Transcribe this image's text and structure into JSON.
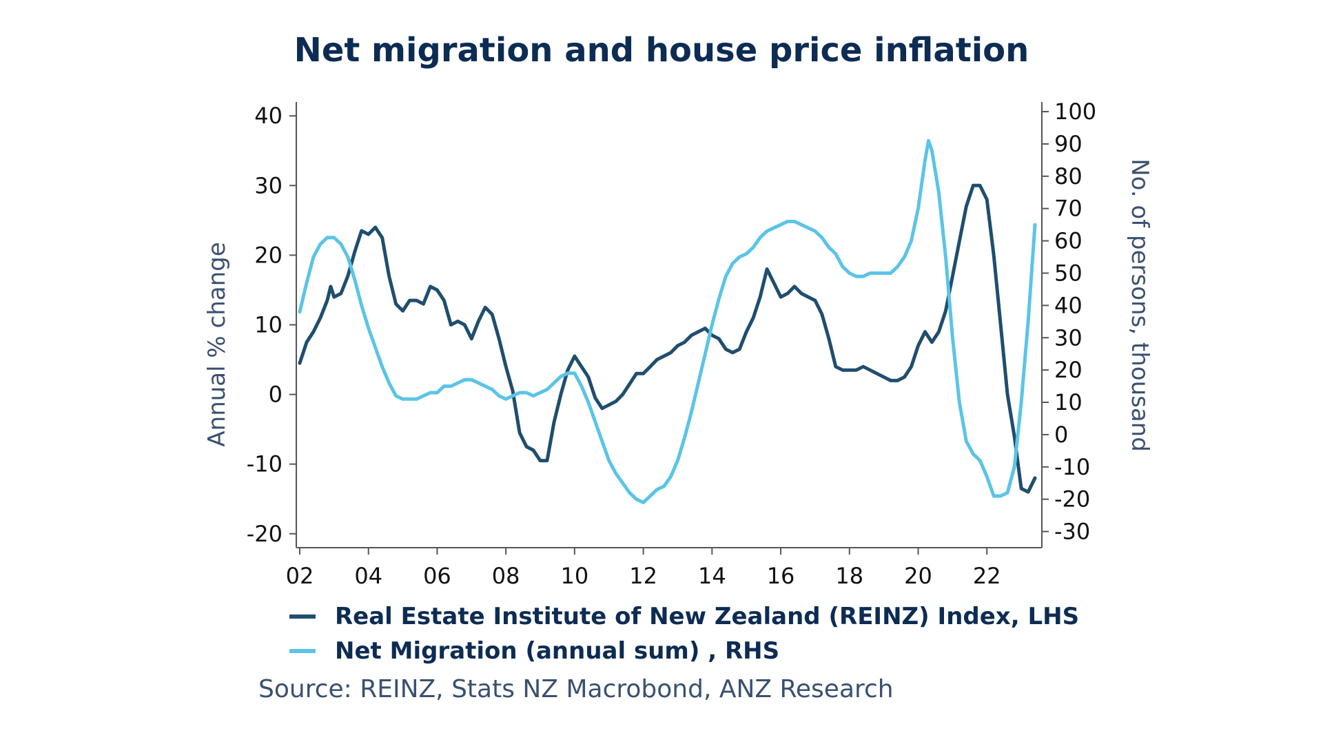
{
  "chart_data": {
    "type": "line",
    "title": "Net migration and house price inflation",
    "ylabel_left": "Annual % change",
    "ylabel_right": "No. of persons, thousand",
    "x_ticks": [
      "02",
      "04",
      "06",
      "08",
      "10",
      "12",
      "14",
      "16",
      "18",
      "20",
      "22"
    ],
    "ylim_left": [
      -22,
      42
    ],
    "ylim_right": [
      -35,
      103
    ],
    "yticks_left": [
      "40",
      "30",
      "20",
      "10",
      "0",
      "-10",
      "-20"
    ],
    "yticks_right": [
      "100",
      "90",
      "80",
      "70",
      "60",
      "50",
      "40",
      "30",
      "20",
      "10",
      "0",
      "-10",
      "-20",
      "-30"
    ],
    "grid": false,
    "legend_position": "bottom",
    "series": [
      {
        "name": "Real Estate Institute of New Zealand (REINZ) Index, LHS",
        "axis": "left",
        "color": "#1f4e6e",
        "points": [
          [
            2002.0,
            4.5
          ],
          [
            2002.2,
            7.5
          ],
          [
            2002.4,
            9.0
          ],
          [
            2002.6,
            11.0
          ],
          [
            2002.8,
            13.5
          ],
          [
            2002.9,
            15.5
          ],
          [
            2003.0,
            14.0
          ],
          [
            2003.2,
            14.5
          ],
          [
            2003.4,
            17.0
          ],
          [
            2003.6,
            20.5
          ],
          [
            2003.8,
            23.5
          ],
          [
            2004.0,
            23.0
          ],
          [
            2004.2,
            24.0
          ],
          [
            2004.4,
            22.5
          ],
          [
            2004.6,
            17.0
          ],
          [
            2004.8,
            13.0
          ],
          [
            2005.0,
            12.0
          ],
          [
            2005.2,
            13.5
          ],
          [
            2005.4,
            13.5
          ],
          [
            2005.6,
            13.0
          ],
          [
            2005.8,
            15.5
          ],
          [
            2006.0,
            15.0
          ],
          [
            2006.2,
            13.5
          ],
          [
            2006.4,
            10.0
          ],
          [
            2006.6,
            10.5
          ],
          [
            2006.8,
            10.0
          ],
          [
            2007.0,
            8.0
          ],
          [
            2007.2,
            10.5
          ],
          [
            2007.4,
            12.5
          ],
          [
            2007.6,
            11.5
          ],
          [
            2007.8,
            8.0
          ],
          [
            2008.0,
            4.0
          ],
          [
            2008.2,
            0.5
          ],
          [
            2008.4,
            -5.5
          ],
          [
            2008.6,
            -7.5
          ],
          [
            2008.8,
            -8.0
          ],
          [
            2009.0,
            -9.5
          ],
          [
            2009.2,
            -9.5
          ],
          [
            2009.4,
            -4.0
          ],
          [
            2009.6,
            0.0
          ],
          [
            2009.8,
            3.5
          ],
          [
            2010.0,
            5.5
          ],
          [
            2010.2,
            4.0
          ],
          [
            2010.4,
            2.5
          ],
          [
            2010.6,
            -0.5
          ],
          [
            2010.8,
            -2.0
          ],
          [
            2011.0,
            -1.5
          ],
          [
            2011.2,
            -1.0
          ],
          [
            2011.4,
            0.0
          ],
          [
            2011.6,
            1.5
          ],
          [
            2011.8,
            3.0
          ],
          [
            2012.0,
            3.0
          ],
          [
            2012.2,
            4.0
          ],
          [
            2012.4,
            5.0
          ],
          [
            2012.6,
            5.5
          ],
          [
            2012.8,
            6.0
          ],
          [
            2013.0,
            7.0
          ],
          [
            2013.2,
            7.5
          ],
          [
            2013.4,
            8.5
          ],
          [
            2013.6,
            9.0
          ],
          [
            2013.8,
            9.5
          ],
          [
            2014.0,
            8.5
          ],
          [
            2014.2,
            8.0
          ],
          [
            2014.4,
            6.5
          ],
          [
            2014.6,
            6.0
          ],
          [
            2014.8,
            6.5
          ],
          [
            2015.0,
            9.0
          ],
          [
            2015.2,
            11.0
          ],
          [
            2015.4,
            14.0
          ],
          [
            2015.6,
            18.0
          ],
          [
            2015.8,
            16.0
          ],
          [
            2016.0,
            14.0
          ],
          [
            2016.2,
            14.5
          ],
          [
            2016.4,
            15.5
          ],
          [
            2016.6,
            14.5
          ],
          [
            2016.8,
            14.0
          ],
          [
            2017.0,
            13.5
          ],
          [
            2017.2,
            11.5
          ],
          [
            2017.4,
            8.0
          ],
          [
            2017.6,
            4.0
          ],
          [
            2017.8,
            3.5
          ],
          [
            2018.0,
            3.5
          ],
          [
            2018.2,
            3.5
          ],
          [
            2018.4,
            4.0
          ],
          [
            2018.6,
            3.5
          ],
          [
            2018.8,
            3.0
          ],
          [
            2019.0,
            2.5
          ],
          [
            2019.2,
            2.0
          ],
          [
            2019.4,
            2.0
          ],
          [
            2019.6,
            2.5
          ],
          [
            2019.8,
            4.0
          ],
          [
            2020.0,
            7.0
          ],
          [
            2020.2,
            9.0
          ],
          [
            2020.4,
            7.5
          ],
          [
            2020.6,
            9.0
          ],
          [
            2020.8,
            12.0
          ],
          [
            2021.0,
            17.0
          ],
          [
            2021.2,
            22.0
          ],
          [
            2021.4,
            27.0
          ],
          [
            2021.6,
            30.0
          ],
          [
            2021.8,
            30.0
          ],
          [
            2022.0,
            28.0
          ],
          [
            2022.2,
            20.0
          ],
          [
            2022.4,
            10.0
          ],
          [
            2022.6,
            0.0
          ],
          [
            2022.8,
            -6.0
          ],
          [
            2023.0,
            -13.5
          ],
          [
            2023.2,
            -14.0
          ],
          [
            2023.4,
            -12.0
          ]
        ]
      },
      {
        "name": "Net Migration (annual sum) , RHS",
        "axis": "right",
        "color": "#5bc4e6",
        "points": [
          [
            2002.0,
            38
          ],
          [
            2002.2,
            47
          ],
          [
            2002.4,
            55
          ],
          [
            2002.6,
            59
          ],
          [
            2002.8,
            61
          ],
          [
            2003.0,
            61
          ],
          [
            2003.2,
            59
          ],
          [
            2003.4,
            55
          ],
          [
            2003.6,
            48
          ],
          [
            2003.8,
            40
          ],
          [
            2004.0,
            33
          ],
          [
            2004.2,
            27
          ],
          [
            2004.4,
            21
          ],
          [
            2004.6,
            16
          ],
          [
            2004.8,
            12
          ],
          [
            2005.0,
            11
          ],
          [
            2005.2,
            11
          ],
          [
            2005.4,
            11
          ],
          [
            2005.6,
            12
          ],
          [
            2005.8,
            13
          ],
          [
            2006.0,
            13
          ],
          [
            2006.2,
            15
          ],
          [
            2006.4,
            15
          ],
          [
            2006.6,
            16
          ],
          [
            2006.8,
            17
          ],
          [
            2007.0,
            17
          ],
          [
            2007.2,
            16
          ],
          [
            2007.4,
            15
          ],
          [
            2007.6,
            14
          ],
          [
            2007.8,
            12
          ],
          [
            2008.0,
            11
          ],
          [
            2008.2,
            12
          ],
          [
            2008.4,
            13
          ],
          [
            2008.6,
            13
          ],
          [
            2008.8,
            12
          ],
          [
            2009.0,
            13
          ],
          [
            2009.2,
            14
          ],
          [
            2009.4,
            16
          ],
          [
            2009.6,
            18
          ],
          [
            2009.8,
            19
          ],
          [
            2010.0,
            19
          ],
          [
            2010.2,
            15
          ],
          [
            2010.4,
            10
          ],
          [
            2010.6,
            4
          ],
          [
            2010.8,
            -2
          ],
          [
            2011.0,
            -8
          ],
          [
            2011.2,
            -12
          ],
          [
            2011.4,
            -15
          ],
          [
            2011.6,
            -18
          ],
          [
            2011.8,
            -20
          ],
          [
            2012.0,
            -21
          ],
          [
            2012.2,
            -19
          ],
          [
            2012.4,
            -17
          ],
          [
            2012.6,
            -16
          ],
          [
            2012.8,
            -13
          ],
          [
            2013.0,
            -8
          ],
          [
            2013.2,
            -1
          ],
          [
            2013.4,
            7
          ],
          [
            2013.6,
            16
          ],
          [
            2013.8,
            25
          ],
          [
            2014.0,
            34
          ],
          [
            2014.2,
            42
          ],
          [
            2014.4,
            49
          ],
          [
            2014.6,
            53
          ],
          [
            2014.8,
            55
          ],
          [
            2015.0,
            56
          ],
          [
            2015.2,
            58
          ],
          [
            2015.4,
            61
          ],
          [
            2015.6,
            63
          ],
          [
            2015.8,
            64
          ],
          [
            2016.0,
            65
          ],
          [
            2016.2,
            66
          ],
          [
            2016.4,
            66
          ],
          [
            2016.6,
            65
          ],
          [
            2016.8,
            64
          ],
          [
            2017.0,
            63
          ],
          [
            2017.2,
            61
          ],
          [
            2017.4,
            58
          ],
          [
            2017.6,
            56
          ],
          [
            2017.8,
            52
          ],
          [
            2018.0,
            50
          ],
          [
            2018.2,
            49
          ],
          [
            2018.4,
            49
          ],
          [
            2018.6,
            50
          ],
          [
            2018.8,
            50
          ],
          [
            2019.0,
            50
          ],
          [
            2019.2,
            50
          ],
          [
            2019.4,
            52
          ],
          [
            2019.6,
            55
          ],
          [
            2019.8,
            60
          ],
          [
            2020.0,
            70
          ],
          [
            2020.2,
            85
          ],
          [
            2020.3,
            91
          ],
          [
            2020.4,
            88
          ],
          [
            2020.6,
            75
          ],
          [
            2020.8,
            55
          ],
          [
            2021.0,
            30
          ],
          [
            2021.2,
            10
          ],
          [
            2021.4,
            -2
          ],
          [
            2021.6,
            -6
          ],
          [
            2021.8,
            -8
          ],
          [
            2022.0,
            -13
          ],
          [
            2022.2,
            -19
          ],
          [
            2022.4,
            -19
          ],
          [
            2022.6,
            -18
          ],
          [
            2022.8,
            -10
          ],
          [
            2023.0,
            10
          ],
          [
            2023.2,
            35
          ],
          [
            2023.4,
            65
          ]
        ]
      }
    ]
  },
  "source": "Source: REINZ, Stats NZ Macrobond, ANZ Research"
}
